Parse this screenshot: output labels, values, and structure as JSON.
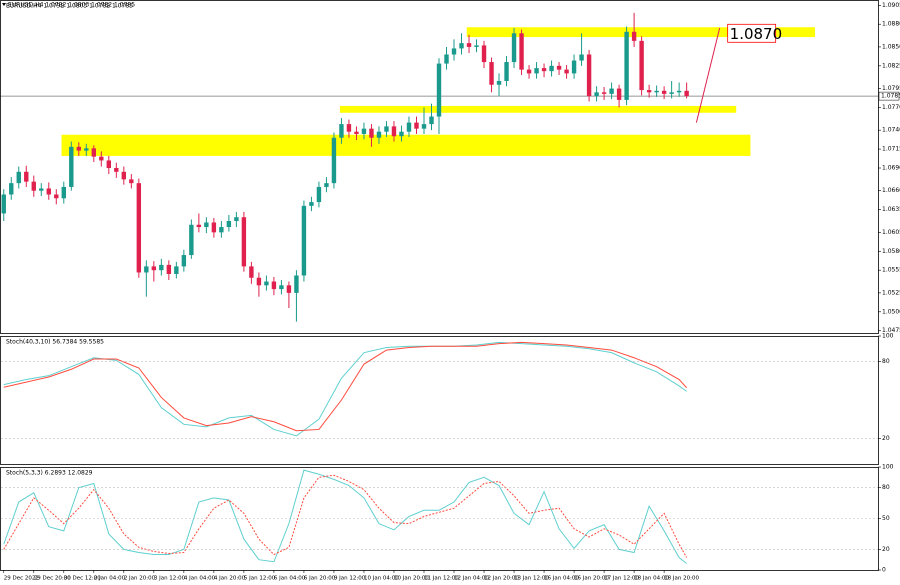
{
  "chart_data": [
    {
      "type": "candlestick",
      "title": "EURUSD,H4  1.0792 1.0803 1.0782 1.0785",
      "up_color": "#1a9a8c",
      "down_color": "#e0214d",
      "xlim": [
        -0.5,
        116.5
      ],
      "ylim": [
        1.0472,
        1.0912
      ],
      "yticks": [
        1.0905,
        {
          "value": 1.088,
          "label": "1.0880"
        },
        {
          "value": 1.085,
          "label": "1.0850"
        },
        1.0825,
        1.0795,
        {
          "value": 1.077,
          "label": "1.0770"
        },
        {
          "value": 1.074,
          "label": "1.0740"
        },
        1.0715,
        {
          "value": 1.069,
          "label": "1.0690"
        },
        {
          "value": 1.066,
          "label": "1.0660"
        },
        1.0635,
        1.0605,
        {
          "value": 1.058,
          "label": "1.0580"
        },
        1.0555,
        1.0525,
        {
          "value": 1.05,
          "label": "1.0500"
        },
        1.0475
      ],
      "xticks": [
        {
          "value": 0,
          "label": "29 Dec 2022"
        },
        {
          "value": 4,
          "label": "29 Dec 20:00"
        },
        {
          "value": 8,
          "label": "30 Dec 12:00"
        },
        {
          "value": 12,
          "label": "2 Jan 04:00"
        },
        {
          "value": 16,
          "label": "2 Jan 20:00"
        },
        {
          "value": 20,
          "label": "3 Jan 12:00"
        },
        {
          "value": 24,
          "label": "4 Jan 04:00"
        },
        {
          "value": 28,
          "label": "4 Jan 20:00"
        },
        {
          "value": 32,
          "label": "5 Jan 12:00"
        },
        {
          "value": 36,
          "label": "6 Jan 04:00"
        },
        {
          "value": 40,
          "label": "6 Jan 20:00"
        },
        {
          "value": 44,
          "label": "9 Jan 12:00"
        },
        {
          "value": 48,
          "label": "10 Jan 04:00"
        },
        {
          "value": 52,
          "label": "10 Jan 20:00"
        },
        {
          "value": 56,
          "label": "11 Jan 12:00"
        },
        {
          "value": 60,
          "label": "12 Jan 04:00"
        },
        {
          "value": 64,
          "label": "12 Jan 20:00"
        },
        {
          "value": 68,
          "label": "13 Jan 12:00"
        },
        {
          "value": 72,
          "label": "16 Jan 04:00"
        },
        {
          "value": 76,
          "label": "16 Jan 20:00"
        },
        {
          "value": 80,
          "label": "17 Jan 12:00"
        },
        {
          "value": 84,
          "label": "18 Jan 04:00"
        },
        {
          "value": 88,
          "label": "18 Jan 20:00"
        }
      ],
      "open": [
        1.063,
        1.0655,
        1.067,
        1.0685,
        1.0672,
        1.066,
        1.0663,
        1.0655,
        1.065,
        1.0665,
        1.0718,
        1.0713,
        1.0716,
        1.0705,
        1.07,
        1.069,
        1.0685,
        1.0675,
        1.067,
        1.0552,
        1.056,
        1.0555,
        1.0562,
        1.055,
        1.056,
        1.0575,
        1.0615,
        1.0612,
        1.0618,
        1.0605,
        1.0612,
        1.062,
        1.0625,
        1.056,
        1.0545,
        1.0535,
        1.054,
        1.053,
        1.0535,
        1.0525,
        1.0548,
        1.064,
        1.0645,
        1.0665,
        1.067,
        1.073,
        1.0748,
        1.0738,
        1.0735,
        1.0742,
        1.073,
        1.0738,
        1.0745,
        1.0732,
        1.0738,
        1.075,
        1.0742,
        1.0748,
        1.0758,
        1.0828,
        1.084,
        1.0848,
        1.0855,
        1.085,
        1.0852,
        1.083,
        1.08,
        1.0805,
        1.083,
        1.0868,
        1.082,
        1.0815,
        1.0822,
        1.0818,
        1.0825,
        1.082,
        1.0815,
        1.0832,
        1.084,
        1.0785,
        1.079,
        1.0788,
        1.0795,
        1.078,
        1.087,
        1.0858,
        1.0793,
        1.079,
        1.0792,
        1.0788,
        1.079,
        1.0792
      ],
      "high": [
        1.0662,
        1.0678,
        1.0692,
        1.0693,
        1.068,
        1.067,
        1.0671,
        1.0662,
        1.0672,
        1.0725,
        1.0724,
        1.0722,
        1.072,
        1.0712,
        1.0706,
        1.0697,
        1.0692,
        1.0682,
        1.0676,
        1.0568,
        1.0567,
        1.057,
        1.0568,
        1.0566,
        1.0582,
        1.0622,
        1.063,
        1.0625,
        1.0624,
        1.062,
        1.0628,
        1.0632,
        1.0632,
        1.0566,
        1.0552,
        1.0548,
        1.0546,
        1.0542,
        1.054,
        1.0555,
        1.0647,
        1.0652,
        1.0672,
        1.0678,
        1.0737,
        1.0756,
        1.0754,
        1.0745,
        1.075,
        1.0748,
        1.0745,
        1.0752,
        1.0752,
        1.0746,
        1.0758,
        1.0758,
        1.077,
        1.0775,
        1.0835,
        1.085,
        1.086,
        1.0868,
        1.0866,
        1.086,
        1.0858,
        1.0836,
        1.0815,
        1.0838,
        1.0875,
        1.0873,
        1.0826,
        1.083,
        1.0828,
        1.0832,
        1.083,
        1.0826,
        1.084,
        1.0868,
        1.0846,
        1.0798,
        1.0797,
        1.0803,
        1.08,
        1.0877,
        1.0895,
        1.0864,
        1.08,
        1.0799,
        1.0798,
        1.0805,
        1.0803,
        1.0803
      ],
      "low": [
        1.062,
        1.0648,
        1.0663,
        1.0665,
        1.0652,
        1.0653,
        1.0648,
        1.0642,
        1.0643,
        1.066,
        1.0706,
        1.0706,
        1.0698,
        1.0692,
        1.0682,
        1.0677,
        1.0668,
        1.0663,
        1.0545,
        1.052,
        1.054,
        1.0548,
        1.0542,
        1.0544,
        1.0553,
        1.057,
        1.0605,
        1.0604,
        1.0598,
        1.0598,
        1.0606,
        1.0612,
        1.0553,
        1.0537,
        1.052,
        1.0528,
        1.0522,
        1.0523,
        1.0505,
        1.0487,
        1.054,
        1.0633,
        1.0638,
        1.0658,
        1.0663,
        1.0722,
        1.073,
        1.0727,
        1.0728,
        1.0718,
        1.0722,
        1.0731,
        1.0725,
        1.0725,
        1.0731,
        1.0735,
        1.0735,
        1.074,
        1.0735,
        1.082,
        1.0832,
        1.084,
        1.0842,
        1.0843,
        1.0822,
        1.079,
        1.0785,
        1.0798,
        1.0822,
        1.0813,
        1.0808,
        1.0808,
        1.081,
        1.0811,
        1.0813,
        1.0808,
        1.0808,
        1.0825,
        1.0778,
        1.0778,
        1.078,
        1.0781,
        1.077,
        1.0773,
        1.085,
        1.0786,
        1.0783,
        1.0784,
        1.0781,
        1.0782,
        1.0784,
        1.0782
      ],
      "close": [
        1.0655,
        1.067,
        1.0685,
        1.0672,
        1.066,
        1.0663,
        1.0655,
        1.065,
        1.0665,
        1.0718,
        1.0713,
        1.0716,
        1.0705,
        1.07,
        1.069,
        1.0685,
        1.0675,
        1.067,
        1.0552,
        1.056,
        1.0555,
        1.0562,
        1.055,
        1.056,
        1.0575,
        1.0615,
        1.0612,
        1.0618,
        1.0605,
        1.0612,
        1.062,
        1.0625,
        1.056,
        1.0545,
        1.0535,
        1.054,
        1.053,
        1.0535,
        1.0525,
        1.0548,
        1.064,
        1.0645,
        1.0665,
        1.067,
        1.073,
        1.0748,
        1.0738,
        1.0735,
        1.0742,
        1.073,
        1.0738,
        1.0745,
        1.0732,
        1.0738,
        1.075,
        1.0742,
        1.0748,
        1.0758,
        1.0828,
        1.084,
        1.0848,
        1.0855,
        1.085,
        1.0852,
        1.083,
        1.08,
        1.0805,
        1.083,
        1.0868,
        1.082,
        1.0815,
        1.0822,
        1.0818,
        1.0825,
        1.082,
        1.0815,
        1.0832,
        1.084,
        1.0785,
        1.079,
        1.0788,
        1.0795,
        1.078,
        1.087,
        1.0858,
        1.0793,
        1.079,
        1.0792,
        1.0788,
        1.079,
        1.0792,
        1.0785
      ],
      "last_price": 1.0785,
      "zone_color": "#ffff00",
      "zones": [
        {
          "from": 1.0863,
          "to": 1.0876,
          "start": 61.7,
          "end": 108.1
        },
        {
          "from": 1.0763,
          "to": 1.0772,
          "start": 44.8,
          "end": 97.6
        },
        {
          "from": 1.0706,
          "to": 1.0734,
          "start": 7.7,
          "end": 99.5
        }
      ],
      "trendline": {
        "color": "#e0214d",
        "x": [
          92.3,
          95.4
        ],
        "y": [
          1.075,
          1.0875
        ]
      },
      "annotation": {
        "text": "1.0870",
        "x": 96.6,
        "y": 1.0868,
        "color": "#ff0000"
      }
    },
    {
      "type": "line",
      "title": "Stoch(40,3,10) 56.7384 59.5585",
      "ylim": [
        0,
        100
      ],
      "yticks": [
        100,
        80,
        20
      ],
      "x": [
        0,
        3,
        6,
        9,
        12,
        15,
        18,
        21,
        24,
        27,
        30,
        33,
        36,
        39,
        42,
        45,
        48,
        51,
        54,
        57,
        60,
        63,
        66,
        69,
        72,
        75,
        78,
        81,
        84,
        87,
        90,
        91
      ],
      "series": [
        {
          "color": "#5fcfcf",
          "dashed": false,
          "values": [
            62,
            66,
            69,
            76,
            83,
            81,
            70,
            44,
            31,
            29,
            36,
            38,
            27,
            22,
            35,
            67,
            87,
            91,
            92,
            92,
            92,
            93,
            95,
            94,
            93,
            92,
            90,
            87,
            79,
            72,
            61,
            56.7384
          ]
        },
        {
          "color": "#ff4a3d",
          "dashed": false,
          "values": [
            60,
            64,
            68,
            74,
            82,
            82,
            75,
            52,
            36,
            30,
            32,
            37,
            33,
            26,
            27,
            50,
            78,
            89,
            91,
            92,
            92,
            92,
            94,
            95,
            94,
            93,
            91,
            89,
            83,
            76,
            66,
            59.5585
          ]
        }
      ]
    },
    {
      "type": "line",
      "title": "Stoch(5,3,3) 6.2893 12.0829",
      "ylim": [
        0,
        100
      ],
      "yticks": [
        100,
        80,
        50,
        20,
        0
      ],
      "x": [
        0,
        2,
        4,
        6,
        8,
        10,
        12,
        14,
        16,
        18,
        20,
        22,
        24,
        26,
        28,
        30,
        32,
        34,
        36,
        38,
        40,
        42,
        44,
        46,
        48,
        50,
        52,
        54,
        56,
        58,
        60,
        62,
        64,
        66,
        68,
        70,
        72,
        74,
        76,
        78,
        80,
        82,
        84,
        86,
        88,
        90,
        91
      ],
      "series": [
        {
          "color": "#5fcfcf",
          "dashed": false,
          "values": [
            25,
            66,
            75,
            42,
            38,
            80,
            84,
            35,
            20,
            17,
            15,
            15,
            20,
            66,
            70,
            68,
            30,
            10,
            8,
            45,
            97,
            93,
            88,
            82,
            70,
            45,
            39,
            52,
            58,
            58,
            66,
            85,
            90,
            82,
            55,
            44,
            76,
            40,
            21,
            38,
            44,
            20,
            17,
            62,
            38,
            12,
            6.2893
          ]
        },
        {
          "color": "#ff4a3d",
          "dashed": true,
          "values": [
            20,
            45,
            70,
            58,
            45,
            60,
            78,
            60,
            35,
            22,
            18,
            16,
            17,
            40,
            60,
            68,
            55,
            30,
            15,
            22,
            70,
            90,
            92,
            86,
            78,
            60,
            46,
            45,
            52,
            56,
            60,
            72,
            84,
            86,
            72,
            55,
            58,
            60,
            40,
            32,
            40,
            34,
            25,
            40,
            55,
            25,
            12.0829
          ]
        }
      ]
    }
  ]
}
